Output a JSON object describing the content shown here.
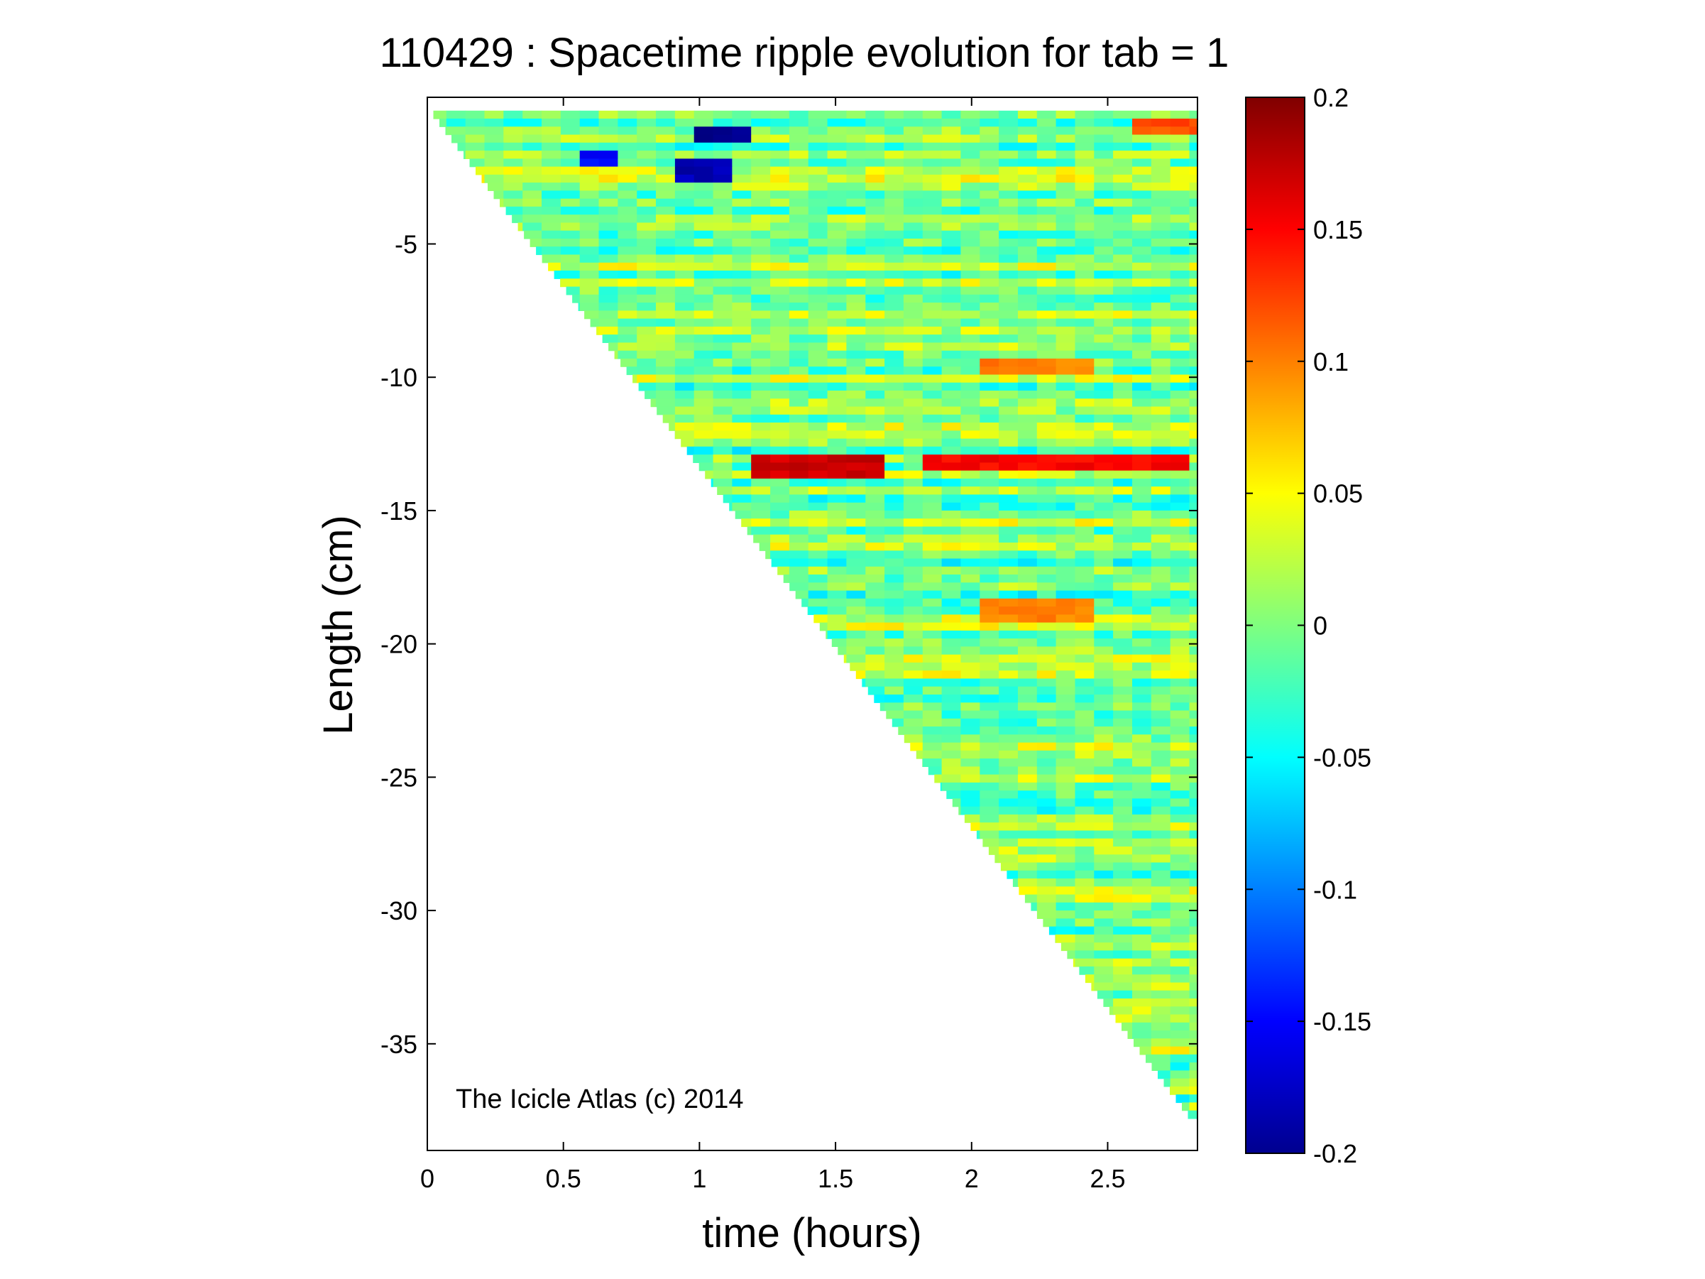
{
  "chart_data": {
    "type": "heatmap",
    "title": "110429 : Spacetime ripple evolution for tab = 1",
    "xlabel": "time (hours)",
    "ylabel": "Length (cm)",
    "xlim": [
      0,
      2.83
    ],
    "ylim": [
      -39,
      0.5
    ],
    "xticks": [
      0,
      0.5,
      1,
      1.5,
      2,
      2.5
    ],
    "xtick_labels": [
      "0",
      "0.5",
      "1",
      "1.5",
      "2",
      "2.5"
    ],
    "yticks": [
      -5,
      -10,
      -15,
      -20,
      -25,
      -30,
      -35
    ],
    "ytick_labels": [
      "-5",
      "-10",
      "-15",
      "-20",
      "-25",
      "-30",
      "-35"
    ],
    "colorbar": {
      "colormap": "jet",
      "range": [
        -0.2,
        0.2
      ],
      "ticks": [
        0.2,
        0.15,
        0.1,
        0.05,
        0,
        -0.05,
        -0.1,
        -0.15,
        -0.2
      ],
      "tick_labels": [
        "0.2",
        "0.15",
        "0.1",
        "0.05",
        "0",
        "-0.05",
        "-0.1",
        "-0.15",
        "-0.2"
      ]
    },
    "icicle_tip": {
      "description_units": "tip length (cm) vs time (hours)",
      "start": [
        0,
        0
      ],
      "end": [
        2.78,
        -37.6
      ]
    },
    "features": [
      {
        "t_start": 1.18,
        "t_end": 1.65,
        "length": -13.3,
        "value": 0.17
      },
      {
        "t_start": 1.85,
        "t_end": 2.8,
        "length": -13.2,
        "value": 0.15
      },
      {
        "t_start": 2.0,
        "t_end": 2.45,
        "length": -9.7,
        "value": 0.1
      },
      {
        "t_start": 2.05,
        "t_end": 2.45,
        "length": -18.7,
        "value": 0.1
      },
      {
        "t_start": 0.95,
        "t_end": 1.2,
        "length": -1.0,
        "value": -0.2
      },
      {
        "t_start": 0.9,
        "t_end": 1.15,
        "length": -2.2,
        "value": -0.18
      },
      {
        "t_start": 0.55,
        "t_end": 0.72,
        "length": -1.8,
        "value": -0.15
      },
      {
        "t_start": 2.6,
        "t_end": 2.83,
        "length": -0.5,
        "value": 0.12
      }
    ]
  },
  "watermark": "The Icicle Atlas (c) 2014"
}
